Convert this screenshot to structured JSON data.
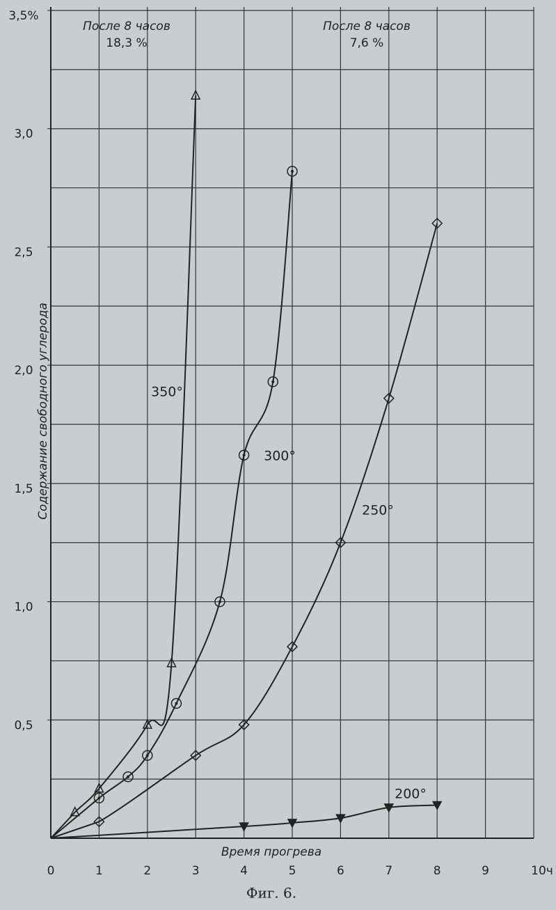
{
  "chart_data": {
    "type": "line",
    "caption": "Фиг. 6.",
    "x_label": "Время прогрева",
    "y_label": "Содержание свободного углерода",
    "annotations": [
      "После 8 часов",
      "18,3 %",
      "После 8 часов",
      "7,6 %"
    ],
    "xlim": [
      0,
      10
    ],
    "ylim": [
      0,
      3.5
    ],
    "xticks": [
      0,
      1,
      2,
      3,
      4,
      5,
      6,
      7,
      8,
      9,
      {
        "value": 10,
        "label": "10ч"
      }
    ],
    "yticks": [
      {
        "value": 0.5,
        "label": "0,5"
      },
      {
        "value": 1.0,
        "label": "1,0"
      },
      {
        "value": 1.5,
        "label": "1,5"
      },
      {
        "value": 2.0,
        "label": "2,0"
      },
      {
        "value": 2.5,
        "label": "2,5"
      },
      {
        "value": 3.0,
        "label": "3,0"
      },
      {
        "value": 3.5,
        "label": "3,5%"
      }
    ],
    "grid": true,
    "grid_y_step": 0.25,
    "series": [
      {
        "name": "350°",
        "color": "#222222",
        "marker": "triangle",
        "x": [
          0.5,
          1,
          2,
          2.5,
          3
        ],
        "values": [
          0.11,
          0.21,
          0.48,
          0.74,
          3.14
        ]
      },
      {
        "name": "300°",
        "color": "#222222",
        "marker": "circle-dot",
        "x": [
          1,
          1.6,
          2,
          2.6,
          3.5,
          4,
          4.6,
          5
        ],
        "values": [
          0.17,
          0.26,
          0.35,
          0.57,
          1.0,
          1.62,
          1.93,
          2.82
        ]
      },
      {
        "name": "250°",
        "color": "#222222",
        "marker": "diamond",
        "x": [
          1,
          3,
          4,
          5,
          6,
          7,
          8
        ],
        "values": [
          0.07,
          0.35,
          0.48,
          0.81,
          1.25,
          1.86,
          2.6
        ]
      },
      {
        "name": "200°",
        "color": "#222222",
        "marker": "triangle-down-filled",
        "x": [
          4,
          5,
          6,
          7,
          8
        ],
        "values": [
          0.05,
          0.065,
          0.085,
          0.13,
          0.14
        ]
      }
    ]
  }
}
